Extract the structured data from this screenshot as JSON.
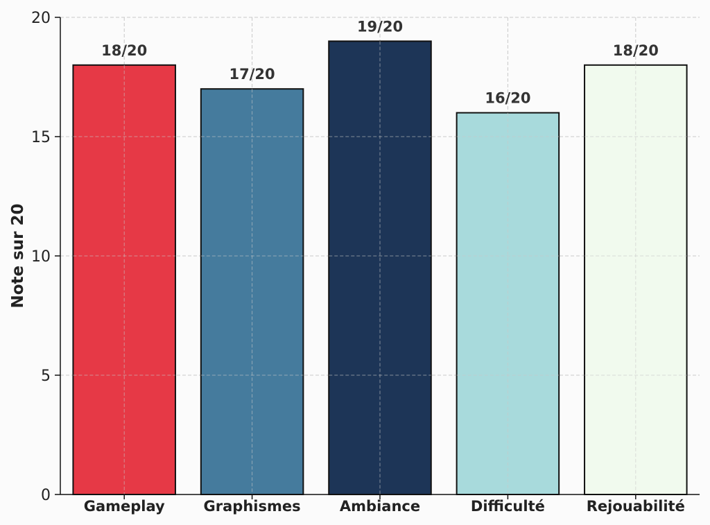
{
  "chart_data": {
    "type": "bar",
    "title": "",
    "xlabel": "",
    "ylabel": "Note sur 20",
    "categories": [
      "Gameplay",
      "Graphismes",
      "Ambiance",
      "Difficulté",
      "Rejouabilité"
    ],
    "values": [
      18,
      17,
      19,
      16,
      18
    ],
    "data_labels": [
      "18/20",
      "17/20",
      "19/20",
      "16/20",
      "18/20"
    ],
    "colors": [
      "#e63946",
      "#457b9d",
      "#1d3557",
      "#a8dadc",
      "#f1faee"
    ],
    "edge_color": "#111111",
    "ylim": [
      0,
      20
    ],
    "yticks": [
      0,
      5,
      10,
      15,
      20
    ],
    "grid": true,
    "legend": "none"
  }
}
